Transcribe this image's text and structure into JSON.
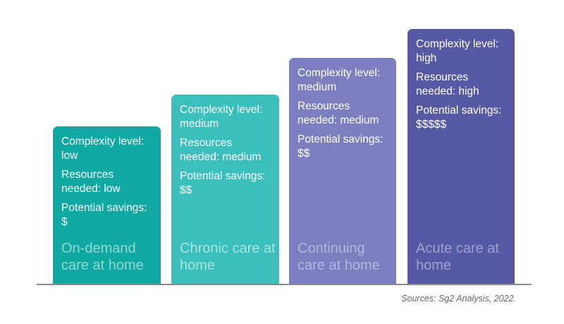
{
  "diagram": {
    "bars": [
      {
        "name": "on-demand",
        "color": "#0fa8a2",
        "complexity": "Complexity level: low",
        "resources": "Resources needed: low",
        "savings": "Potential savings: $",
        "label": "On-demand care at home"
      },
      {
        "name": "chronic",
        "color": "#3bbfbc",
        "complexity": "Complexity level: medium",
        "resources": "Resources needed: medium",
        "savings": "Potential savings: $$",
        "label": "Chronic care at home"
      },
      {
        "name": "continuing",
        "color": "#7b7fbf",
        "complexity": "Complexity level: medium",
        "resources": "Resources needed: medium",
        "savings": "Potential savings: $$",
        "label": "Continuing care at home"
      },
      {
        "name": "acute",
        "color": "#5659a4",
        "complexity": "Complexity level: high",
        "resources": "Resources needed: high",
        "savings": "Potential savings: $$$$$",
        "label": "Acute care at home"
      }
    ],
    "source": "Sources: Sg2 Analysis, 2022."
  }
}
